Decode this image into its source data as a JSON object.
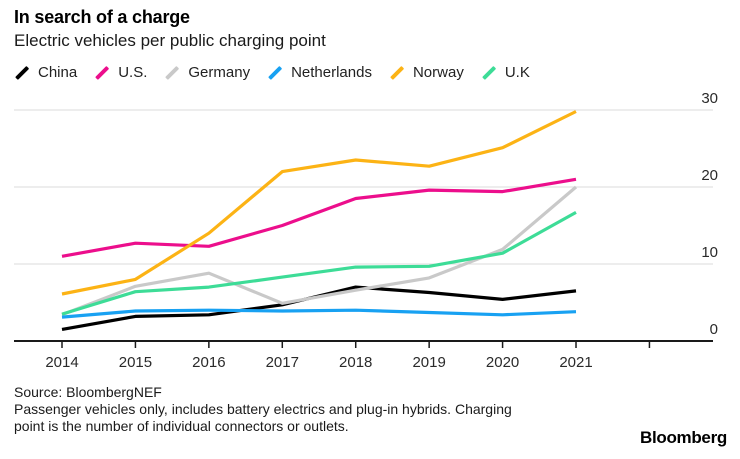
{
  "header": {
    "title": "In search of a charge",
    "subtitle": "Electric vehicles per public charging point"
  },
  "chart_data": {
    "type": "line",
    "title": "In search of a charge",
    "subtitle": "Electric vehicles per public charging point",
    "x": [
      2014,
      2015,
      2016,
      2017,
      2018,
      2019,
      2020,
      2021
    ],
    "series": [
      {
        "name": "China",
        "color": "#000000",
        "values": [
          1.5,
          3.2,
          3.4,
          4.7,
          7.0,
          6.3,
          5.4,
          6.5
        ]
      },
      {
        "name": "U.S.",
        "color": "#ec0e8c",
        "values": [
          11.0,
          12.7,
          12.3,
          15.0,
          18.5,
          19.6,
          19.4,
          21.0
        ]
      },
      {
        "name": "Germany",
        "color": "#c9c9c9",
        "values": [
          3.4,
          7.1,
          8.8,
          4.9,
          6.6,
          8.2,
          11.9,
          20.0
        ]
      },
      {
        "name": "Netherlands",
        "color": "#18a1f2",
        "values": [
          3.1,
          3.9,
          4.0,
          3.9,
          4.0,
          3.7,
          3.4,
          3.8
        ]
      },
      {
        "name": "Norway",
        "color": "#fcb315",
        "values": [
          6.1,
          8.0,
          14.0,
          22.0,
          23.5,
          22.7,
          25.1,
          29.8
        ]
      },
      {
        "name": "U.K",
        "color": "#3ddc97",
        "values": [
          3.5,
          6.4,
          7.0,
          8.3,
          9.6,
          9.7,
          11.4,
          16.7
        ]
      }
    ],
    "ylim": [
      0,
      30
    ],
    "yticks": [
      0,
      10,
      20,
      30
    ],
    "y_axis_side": "right",
    "legend_position": "top",
    "grid": "horizontal",
    "colors": {
      "grid": "#dbdbdb",
      "axis": "#1a1a1a"
    }
  },
  "footer": {
    "source": "Source: BloombergNEF",
    "note_lines": [
      "Passenger vehicles only, includes battery electrics and plug-in hybrids. Charging",
      "point is the number of individual connectors or outlets."
    ],
    "brand": "Bloomberg"
  }
}
